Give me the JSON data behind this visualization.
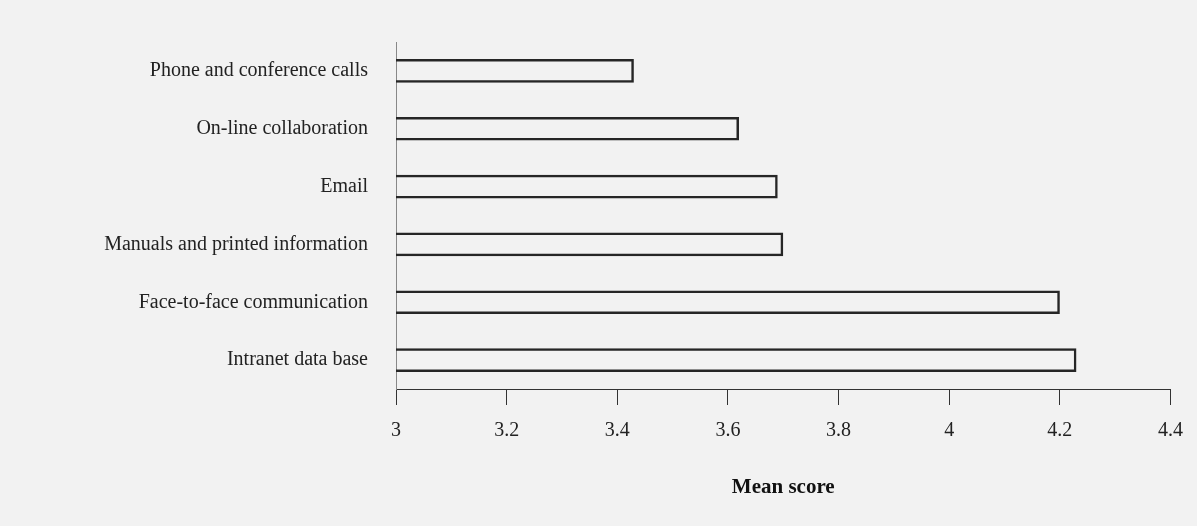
{
  "chart_data": {
    "type": "bar",
    "orientation": "horizontal",
    "xlabel": "Mean score",
    "categories": [
      "Phone and conference calls",
      "On-line collaboration",
      "Email",
      "Manuals and printed information",
      "Face-to-face communication",
      "Intranet data base"
    ],
    "values": [
      3.43,
      3.62,
      3.69,
      3.7,
      4.2,
      4.23
    ],
    "color": "#262626",
    "xlim": [
      3,
      4.4
    ],
    "xticks": [
      3,
      3.2,
      3.4,
      3.6,
      3.8,
      4,
      4.2,
      4.4
    ],
    "grid": false,
    "legend": false
  }
}
